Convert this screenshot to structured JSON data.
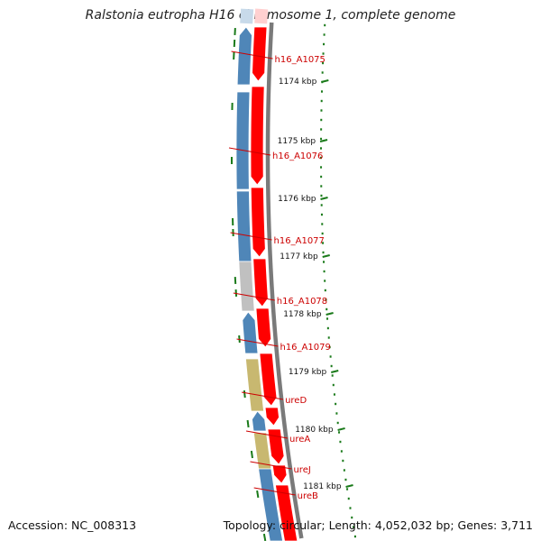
{
  "title": "Ralstonia eutropha H16 chromosome 1, complete genome",
  "accession": "Accession: NC_008313",
  "topology": "Topology: circular; Length: 4,052,032 bp; Genes: 3,711",
  "colors": {
    "forward_cds": "#ff0000",
    "reverse_cds": "#4f86b8",
    "grey_feature": "#c0c0c0",
    "olive_feature": "#c8b870",
    "backbone": "#7a7a7a",
    "tick": "#1a7a1a",
    "label": "#cc0000"
  },
  "scale": [
    {
      "label": "1174 kbp"
    },
    {
      "label": "1175 kbp"
    },
    {
      "label": "1176 kbp"
    },
    {
      "label": "1177 kbp"
    },
    {
      "label": "1178 kbp"
    },
    {
      "label": "1179 kbp"
    },
    {
      "label": "1180 kbp"
    },
    {
      "label": "1181 kbp"
    }
  ],
  "genes": [
    {
      "label": "h16_A1075"
    },
    {
      "label": "h16_A1076"
    },
    {
      "label": "h16_A1077"
    },
    {
      "label": "h16_A1078"
    },
    {
      "label": "h16_A1079"
    },
    {
      "label": "ureD"
    },
    {
      "label": "ureA"
    },
    {
      "label": "ureJ"
    },
    {
      "label": "ureB"
    }
  ]
}
